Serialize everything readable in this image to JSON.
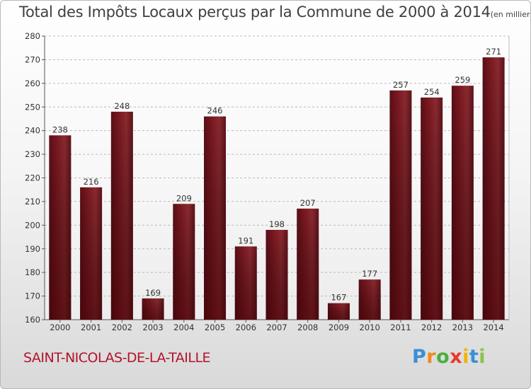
{
  "chart_data": {
    "type": "bar",
    "title": "Total des Impôts Locaux perçus par la Commune de 2000 à 2014",
    "unit_label": "(en milliers d'€)",
    "categories": [
      "2000",
      "2001",
      "2002",
      "2003",
      "2004",
      "2005",
      "2006",
      "2007",
      "2008",
      "2009",
      "2010",
      "2011",
      "2012",
      "2013",
      "2014"
    ],
    "values": [
      238,
      216,
      248,
      169,
      209,
      246,
      191,
      198,
      207,
      167,
      177,
      257,
      254,
      259,
      271
    ],
    "ylim": [
      160,
      280
    ],
    "yticks": [
      160,
      170,
      180,
      190,
      200,
      210,
      220,
      230,
      240,
      250,
      260,
      270,
      280
    ],
    "xlabel": "",
    "ylabel": "",
    "grid": true,
    "bar_color": "#7a1820"
  },
  "commune": "SAINT-NICOLAS-DE-LA-TAILLE",
  "logo": {
    "letters": [
      "P",
      "r",
      "o",
      "x",
      "i",
      "t",
      "i"
    ],
    "colors": [
      "#3a8fd6",
      "#f08a1c",
      "#4caf3e",
      "#e8392b",
      "#f5b400",
      "#3a8fd6",
      "#8bc34a"
    ]
  }
}
